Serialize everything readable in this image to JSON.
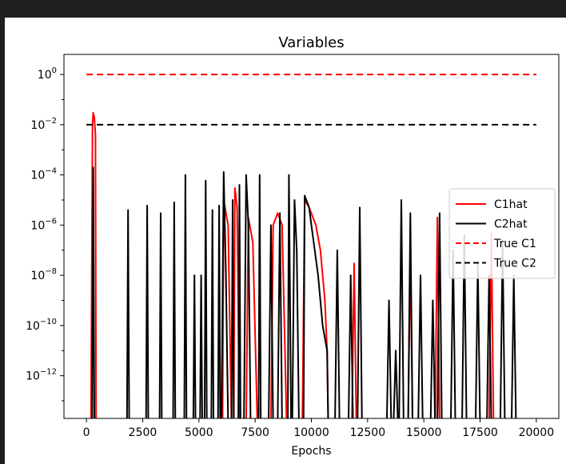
{
  "chart_data": {
    "type": "line",
    "title": "Variables",
    "xlabel": "Epochs",
    "ylabel": "",
    "yscale": "log",
    "xlim": [
      -1000,
      21000
    ],
    "ylim_exp": [
      -13.7,
      0.8
    ],
    "x_ticks": [
      0,
      2500,
      5000,
      7500,
      10000,
      12500,
      15000,
      17500,
      20000
    ],
    "x_tick_labels": [
      "0",
      "2500",
      "5000",
      "7500",
      "10000",
      "12500",
      "15000",
      "17500",
      "20000"
    ],
    "y_tick_exponents": [
      0,
      -2,
      -4,
      -6,
      -8,
      -10,
      -12
    ],
    "y_tick_exp_labels": [
      "0",
      "−2",
      "−4",
      "−6",
      "−8",
      "−10",
      "−12"
    ],
    "y_tick_base": "10",
    "grid": false,
    "legend_position": "right",
    "series": [
      {
        "name": "C1hat",
        "color": "#ff0000",
        "style": "solid",
        "points": [
          [
            200,
            1e-14
          ],
          [
            270,
            0.01
          ],
          [
            300,
            0.03
          ],
          [
            350,
            0.02
          ],
          [
            400,
            0.004
          ],
          [
            430,
            1e-14
          ],
          [
            6050,
            1e-14
          ],
          [
            6100,
            1e-05
          ],
          [
            6300,
            1e-06
          ],
          [
            6450,
            1e-14
          ],
          [
            6550,
            1e-14
          ],
          [
            6600,
            3e-05
          ],
          [
            6700,
            5e-06
          ],
          [
            6800,
            1e-14
          ],
          [
            7100,
            1e-14
          ],
          [
            7200,
            2e-06
          ],
          [
            7400,
            2e-07
          ],
          [
            7600,
            1e-14
          ],
          [
            8200,
            1e-14
          ],
          [
            8300,
            1e-06
          ],
          [
            8500,
            3e-06
          ],
          [
            8700,
            1e-06
          ],
          [
            8900,
            1e-14
          ],
          [
            9600,
            1e-14
          ],
          [
            9700,
            1e-05
          ],
          [
            9900,
            5e-06
          ],
          [
            10200,
            1e-06
          ],
          [
            10400,
            1e-07
          ],
          [
            10600,
            1e-09
          ],
          [
            10700,
            1e-11
          ],
          [
            10750,
            1e-14
          ],
          [
            11800,
            1e-14
          ],
          [
            11900,
            3e-08
          ],
          [
            12000,
            1e-14
          ],
          [
            14300,
            1e-14
          ],
          [
            14400,
            1e-07
          ],
          [
            14500,
            1e-14
          ],
          [
            15500,
            1e-14
          ],
          [
            15600,
            2e-06
          ],
          [
            15700,
            1e-14
          ],
          [
            17900,
            1e-14
          ],
          [
            18000,
            5e-07
          ],
          [
            18100,
            1e-14
          ]
        ]
      },
      {
        "name": "C2hat",
        "color": "#000000",
        "style": "solid",
        "points": [
          [
            250,
            1e-14
          ],
          [
            300,
            0.0002
          ],
          [
            350,
            1e-14
          ],
          [
            1800,
            1e-14
          ],
          [
            1850,
            4e-06
          ],
          [
            1900,
            1e-14
          ],
          [
            2650,
            1e-14
          ],
          [
            2700,
            6e-06
          ],
          [
            2750,
            1e-14
          ],
          [
            3250,
            1e-14
          ],
          [
            3300,
            3e-06
          ],
          [
            3350,
            1e-14
          ],
          [
            3850,
            1e-14
          ],
          [
            3900,
            8e-06
          ],
          [
            3950,
            1e-14
          ],
          [
            4350,
            1e-14
          ],
          [
            4400,
            0.0001
          ],
          [
            4450,
            1e-14
          ],
          [
            4750,
            1e-14
          ],
          [
            4800,
            1e-08
          ],
          [
            4850,
            1e-14
          ],
          [
            5050,
            1e-14
          ],
          [
            5100,
            1e-08
          ],
          [
            5150,
            1e-14
          ],
          [
            5250,
            1e-14
          ],
          [
            5300,
            6e-05
          ],
          [
            5350,
            1e-14
          ],
          [
            5550,
            1e-14
          ],
          [
            5600,
            4e-06
          ],
          [
            5650,
            1e-14
          ],
          [
            5850,
            1e-14
          ],
          [
            5900,
            6e-06
          ],
          [
            5950,
            1e-14
          ],
          [
            6000,
            1e-14
          ],
          [
            6100,
            0.00013
          ],
          [
            6200,
            1e-08
          ],
          [
            6300,
            1e-14
          ],
          [
            6450,
            1e-14
          ],
          [
            6500,
            1e-05
          ],
          [
            6550,
            1e-14
          ],
          [
            6750,
            1e-14
          ],
          [
            6800,
            4e-05
          ],
          [
            6850,
            1e-14
          ],
          [
            7000,
            1e-14
          ],
          [
            7100,
            0.0001
          ],
          [
            7200,
            1e-06
          ],
          [
            7300,
            1e-14
          ],
          [
            7650,
            1e-14
          ],
          [
            7700,
            0.0001
          ],
          [
            7750,
            1e-14
          ],
          [
            8100,
            1e-14
          ],
          [
            8200,
            1e-06
          ],
          [
            8300,
            1e-14
          ],
          [
            8500,
            1e-14
          ],
          [
            8600,
            3e-06
          ],
          [
            8700,
            1e-14
          ],
          [
            8950,
            1e-14
          ],
          [
            9000,
            0.0001
          ],
          [
            9100,
            1e-14
          ],
          [
            9150,
            1e-14
          ],
          [
            9250,
            1e-05
          ],
          [
            9350,
            1e-07
          ],
          [
            9450,
            1e-14
          ],
          [
            9650,
            1e-14
          ],
          [
            9700,
            1.5e-05
          ],
          [
            9900,
            5e-06
          ],
          [
            10000,
            1e-06
          ],
          [
            10300,
            1e-08
          ],
          [
            10500,
            1e-10
          ],
          [
            10700,
            1e-11
          ],
          [
            10750,
            1e-14
          ],
          [
            11050,
            1e-14
          ],
          [
            11150,
            1e-07
          ],
          [
            11250,
            1e-14
          ],
          [
            11650,
            1e-14
          ],
          [
            11750,
            1e-08
          ],
          [
            11850,
            1e-14
          ],
          [
            12050,
            1e-14
          ],
          [
            12150,
            5e-06
          ],
          [
            12250,
            1e-14
          ],
          [
            13350,
            1e-14
          ],
          [
            13450,
            1e-09
          ],
          [
            13550,
            1e-14
          ],
          [
            13650,
            1e-14
          ],
          [
            13750,
            1e-11
          ],
          [
            13850,
            1e-14
          ],
          [
            13900,
            1e-14
          ],
          [
            14000,
            1e-05
          ],
          [
            14100,
            1e-14
          ],
          [
            14300,
            1e-14
          ],
          [
            14400,
            3e-06
          ],
          [
            14500,
            1e-14
          ],
          [
            14750,
            1e-14
          ],
          [
            14850,
            1e-08
          ],
          [
            14950,
            1e-14
          ],
          [
            15300,
            1e-14
          ],
          [
            15400,
            1e-09
          ],
          [
            15500,
            1e-14
          ],
          [
            15600,
            1e-14
          ],
          [
            15700,
            3e-06
          ],
          [
            15800,
            1e-14
          ],
          [
            16200,
            1e-14
          ],
          [
            16300,
            1e-07
          ],
          [
            16400,
            1e-14
          ],
          [
            16700,
            1e-14
          ],
          [
            16800,
            4e-07
          ],
          [
            16900,
            1e-14
          ],
          [
            17300,
            1e-14
          ],
          [
            17400,
            3e-08
          ],
          [
            17500,
            1e-14
          ],
          [
            17800,
            1e-14
          ],
          [
            17900,
            1e-08
          ],
          [
            18000,
            1e-14
          ],
          [
            18400,
            1e-14
          ],
          [
            18500,
            2e-07
          ],
          [
            18600,
            1e-14
          ],
          [
            18900,
            1e-14
          ],
          [
            19000,
            1e-08
          ],
          [
            19100,
            1e-14
          ]
        ]
      },
      {
        "name": "True C1",
        "color": "#ff0000",
        "style": "dashed",
        "points": [
          [
            0,
            1
          ],
          [
            20000,
            1
          ]
        ]
      },
      {
        "name": "True C2",
        "color": "#000000",
        "style": "dashed",
        "points": [
          [
            0,
            0.01
          ],
          [
            20000,
            0.01
          ]
        ]
      }
    ]
  }
}
